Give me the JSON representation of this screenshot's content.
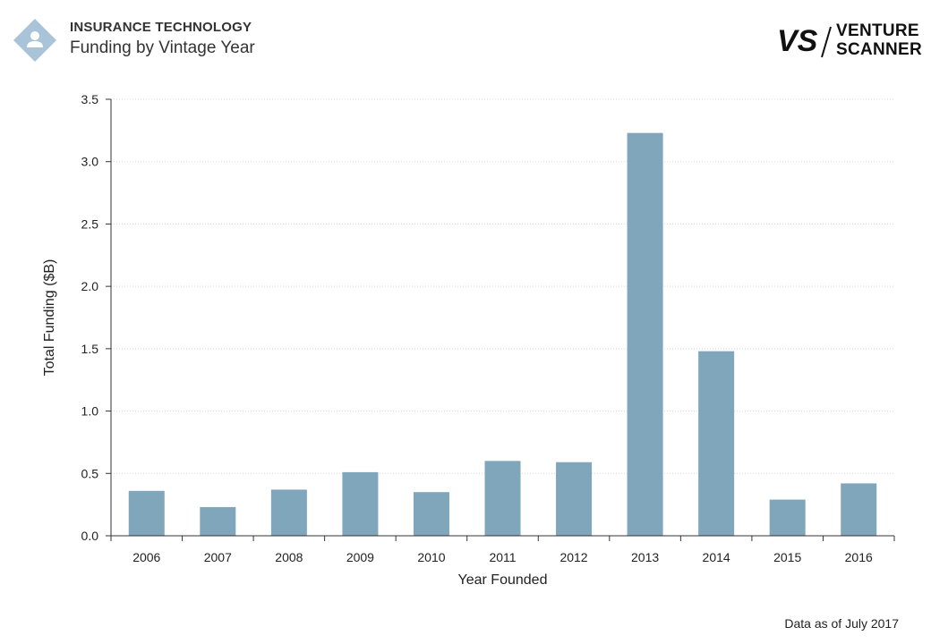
{
  "header": {
    "category": "INSURANCE TECHNOLOGY",
    "title": "Funding by Vintage Year",
    "icon": "person-icon"
  },
  "logo": {
    "mark": "VS",
    "line1": "VENTURE",
    "line2": "SCANNER"
  },
  "footer": {
    "note": "Data as of July 2017"
  },
  "colors": {
    "bar": "#7fa6bb",
    "diamond": "#a9c3d8",
    "grid": "#d8d8d8",
    "axis": "#333333"
  },
  "chart_data": {
    "type": "bar",
    "categories": [
      "2006",
      "2007",
      "2008",
      "2009",
      "2010",
      "2011",
      "2012",
      "2013",
      "2014",
      "2015",
      "2016"
    ],
    "values": [
      0.36,
      0.23,
      0.37,
      0.51,
      0.35,
      0.6,
      0.59,
      3.23,
      1.48,
      0.29,
      0.42
    ],
    "xlabel": "Year Founded",
    "ylabel": "Total Funding ($B)",
    "ylim": [
      0,
      3.5
    ],
    "yticks": [
      "0.0",
      "0.5",
      "1.0",
      "1.5",
      "2.0",
      "2.5",
      "3.0",
      "3.5"
    ],
    "grid": true,
    "legend": "none"
  }
}
